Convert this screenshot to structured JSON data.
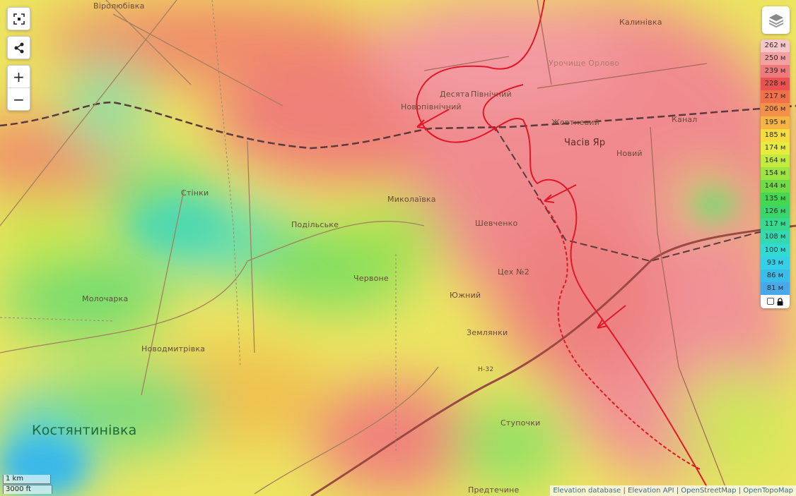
{
  "controls": {
    "fullscreen_icon": "fullscreen-icon",
    "share_icon": "share-icon",
    "zoom_in_label": "+",
    "zoom_out_label": "−",
    "layers_icon": "layers-icon"
  },
  "legend": {
    "levels": [
      {
        "label": "262 м",
        "color": "#f6c6c8"
      },
      {
        "label": "250 м",
        "color": "#f3a0a3"
      },
      {
        "label": "239 м",
        "color": "#ef7a7c"
      },
      {
        "label": "228 м",
        "color": "#ea5150"
      },
      {
        "label": "217 м",
        "color": "#f0704a"
      },
      {
        "label": "206 м",
        "color": "#f3914a"
      },
      {
        "label": "195 м",
        "color": "#f7b445"
      },
      {
        "label": "185 м",
        "color": "#f6dc3f"
      },
      {
        "label": "174 м",
        "color": "#e5ec3e"
      },
      {
        "label": "164 м",
        "color": "#c3ea3e"
      },
      {
        "label": "154 м",
        "color": "#9de341"
      },
      {
        "label": "144 м",
        "color": "#6fdc45"
      },
      {
        "label": "135 м",
        "color": "#45d74f"
      },
      {
        "label": "126 м",
        "color": "#3ad66c"
      },
      {
        "label": "117 м",
        "color": "#36d98e"
      },
      {
        "label": "108 м",
        "color": "#33dab1"
      },
      {
        "label": "100 м",
        "color": "#31dbd1"
      },
      {
        "label": "93 м",
        "color": "#33d0e8"
      },
      {
        "label": "86 м",
        "color": "#3bbdeb"
      },
      {
        "label": "81 м",
        "color": "#47a8ea"
      }
    ],
    "lock_icon": "lock-icon"
  },
  "places": [
    {
      "id": "virolyubivka",
      "name": "Віролюбівка"
    },
    {
      "id": "kalynivka",
      "name": "Калинівка"
    },
    {
      "id": "urochyshche",
      "name": "Урочище Орлово"
    },
    {
      "id": "desiata",
      "name": "Десята"
    },
    {
      "id": "pivnichnyi",
      "name": "Північний"
    },
    {
      "id": "novopivnichnyi",
      "name": "Новопівнічний"
    },
    {
      "id": "zhovtnevyi",
      "name": "Жовтневий"
    },
    {
      "id": "chasiv_yar",
      "name": "Часів Яр"
    },
    {
      "id": "novyi",
      "name": "Новий"
    },
    {
      "id": "kanal",
      "name": "Канал"
    },
    {
      "id": "stinky",
      "name": "Стінки"
    },
    {
      "id": "mykolaivka",
      "name": "Миколаївка"
    },
    {
      "id": "podilske",
      "name": "Подільське"
    },
    {
      "id": "shevchenko",
      "name": "Шевченко"
    },
    {
      "id": "tsekh2",
      "name": "Цех №2"
    },
    {
      "id": "chervone",
      "name": "Червоне"
    },
    {
      "id": "yuzhnyi",
      "name": "Южний"
    },
    {
      "id": "zemlianky",
      "name": "Землянки"
    },
    {
      "id": "molocharka",
      "name": "Молочарка"
    },
    {
      "id": "novodmytrivka",
      "name": "Новодмитрівка"
    },
    {
      "id": "kostiantynivka",
      "name": "Костянтинівка"
    },
    {
      "id": "stupochky",
      "name": "Ступочки"
    },
    {
      "id": "predtechyne",
      "name": "Предтечине"
    },
    {
      "id": "road_h32",
      "name": "H-32"
    }
  ],
  "scale": {
    "metric": "1 km",
    "imperial": "3000 ft"
  },
  "attribution": [
    "Elevation database",
    "Elevation API",
    "OpenStreetMap",
    "OpenTopoMap"
  ],
  "overlay_colors": {
    "frontline": "#e0182a",
    "railway": "#5a3a3a",
    "road": "#9a5a4a"
  }
}
